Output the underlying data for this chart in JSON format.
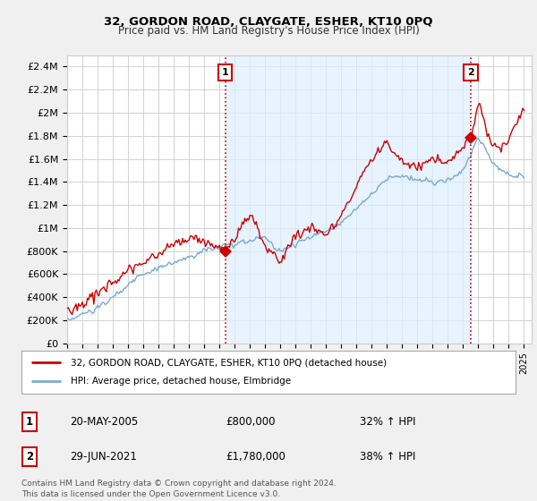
{
  "title": "32, GORDON ROAD, CLAYGATE, ESHER, KT10 0PQ",
  "subtitle": "Price paid vs. HM Land Registry's House Price Index (HPI)",
  "ylim": [
    0,
    2500000
  ],
  "yticks": [
    0,
    200000,
    400000,
    600000,
    800000,
    1000000,
    1200000,
    1400000,
    1600000,
    1800000,
    2000000,
    2200000,
    2400000
  ],
  "ytick_labels": [
    "£0",
    "£200K",
    "£400K",
    "£600K",
    "£800K",
    "£1M",
    "£1.2M",
    "£1.4M",
    "£1.6M",
    "£1.8M",
    "£2M",
    "£2.2M",
    "£2.4M"
  ],
  "xlim_start": 1995.0,
  "xlim_end": 2025.5,
  "xticks": [
    1995,
    1996,
    1997,
    1998,
    1999,
    2000,
    2001,
    2002,
    2003,
    2004,
    2005,
    2006,
    2007,
    2008,
    2009,
    2010,
    2011,
    2012,
    2013,
    2014,
    2015,
    2016,
    2017,
    2018,
    2019,
    2020,
    2021,
    2022,
    2023,
    2024,
    2025
  ],
  "property_color": "#cc0000",
  "hpi_color": "#7aaad4",
  "vline_color": "#cc0000",
  "shade_color": "#ddeeff",
  "marker1_x": 2005.38,
  "marker1_y": 800000,
  "marker2_x": 2021.49,
  "marker2_y": 1780000,
  "legend_property_label": "32, GORDON ROAD, CLAYGATE, ESHER, KT10 0PQ (detached house)",
  "legend_hpi_label": "HPI: Average price, detached house, Elmbridge",
  "table_row1": [
    "1",
    "20-MAY-2005",
    "£800,000",
    "32% ↑ HPI"
  ],
  "table_row2": [
    "2",
    "29-JUN-2021",
    "£1,780,000",
    "38% ↑ HPI"
  ],
  "footnote": "Contains HM Land Registry data © Crown copyright and database right 2024.\nThis data is licensed under the Open Government Licence v3.0.",
  "background_color": "#f0f0f0",
  "plot_bg_color": "#ffffff",
  "grid_color": "#cccccc"
}
